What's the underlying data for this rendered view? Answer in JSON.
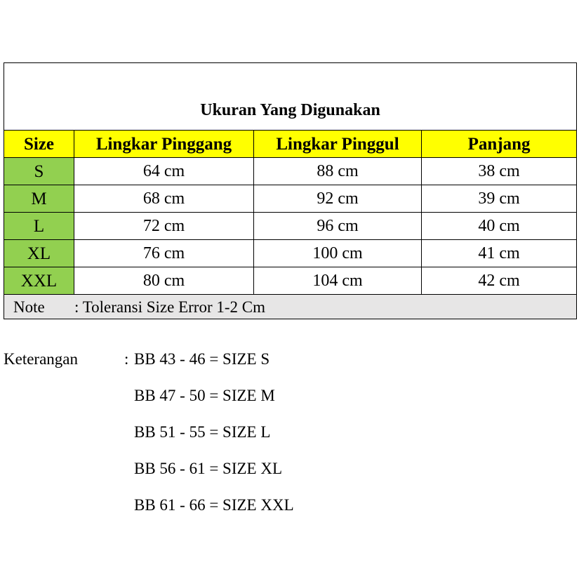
{
  "table": {
    "title": "Ukuran Yang Digunakan",
    "headers": [
      "Size",
      "Lingkar Pinggang",
      "Lingkar Pinggul",
      "Panjang"
    ],
    "rows": [
      [
        "S",
        "64 cm",
        "88 cm",
        "38 cm"
      ],
      [
        "M",
        "68 cm",
        "92 cm",
        "39 cm"
      ],
      [
        "L",
        "72 cm",
        "96 cm",
        "40 cm"
      ],
      [
        "XL",
        "76 cm",
        "100 cm",
        "41 cm"
      ],
      [
        "XXL",
        "80 cm",
        "104 cm",
        "42 cm"
      ]
    ],
    "note_label": "Note",
    "note_text": ":  Toleransi Size Error 1-2 Cm"
  },
  "keterangan": {
    "label": "Keterangan",
    "colon": ":",
    "lines": [
      "BB 43 - 46 = SIZE S",
      "BB 47 - 50 = SIZE M",
      "BB 51 - 55 = SIZE L",
      "BB 56 - 61 = SIZE XL",
      "BB 61 - 66 = SIZE XXL"
    ]
  },
  "colors": {
    "header": "#ffff00",
    "size_column": "#92d050",
    "note_row": "#e7e6e6"
  }
}
